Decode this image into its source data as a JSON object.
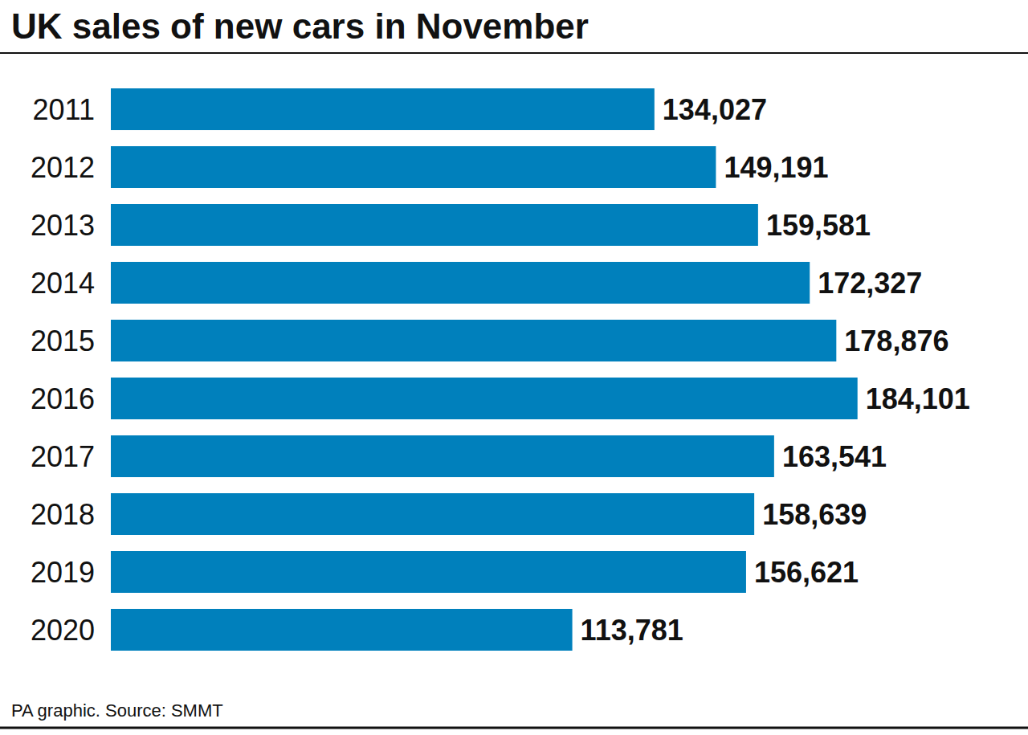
{
  "chart_data": {
    "type": "bar",
    "title": "UK sales of new cars in November",
    "source": "PA graphic. Source: SMMT",
    "categories": [
      "2011",
      "2012",
      "2013",
      "2014",
      "2015",
      "2016",
      "2017",
      "2018",
      "2019",
      "2020"
    ],
    "values": [
      134027,
      149191,
      159581,
      172327,
      178876,
      184101,
      163541,
      158639,
      156621,
      113781
    ],
    "value_labels": [
      "134,027",
      "149,191",
      "159,581",
      "172,327",
      "178,876",
      "184,101",
      "163,541",
      "158,639",
      "156,621",
      "113,781"
    ],
    "color": "#0080bc",
    "orientation": "horizontal",
    "xlim": [
      0,
      200000
    ],
    "grid": false,
    "data_labels": true,
    "tick_labels": "y"
  }
}
